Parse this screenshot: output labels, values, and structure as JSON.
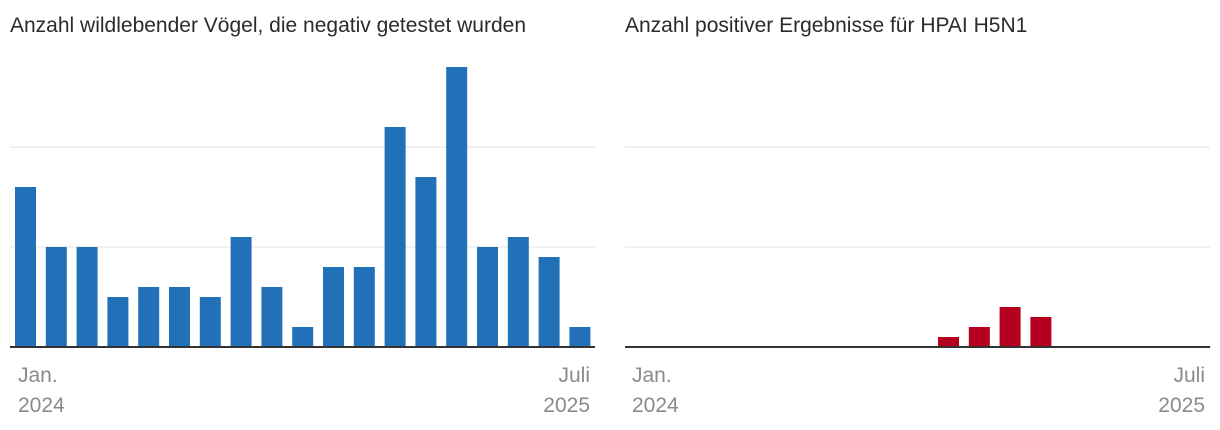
{
  "chart_data": [
    {
      "type": "bar",
      "title": "Anzahl wildlebender Vögel, die negativ getestet wurden",
      "color": "#2170b8",
      "ylim": [
        0,
        28
      ],
      "grid": true,
      "grid_values": [
        10,
        20
      ],
      "x_tick_labels": [
        {
          "line1": "Jan.",
          "line2": "2024",
          "anchor": "start"
        },
        {
          "line1": "Juli",
          "line2": "2025",
          "anchor": "end"
        }
      ],
      "categories": [
        "2024-01",
        "2024-02",
        "2024-03",
        "2024-04",
        "2024-05",
        "2024-06",
        "2024-07",
        "2024-08",
        "2024-09",
        "2024-10",
        "2024-11",
        "2024-12",
        "2025-01",
        "2025-02",
        "2025-03",
        "2025-04",
        "2025-05",
        "2025-06",
        "2025-07"
      ],
      "values": [
        16,
        10,
        10,
        5,
        6,
        6,
        5,
        11,
        6,
        2,
        8,
        8,
        22,
        17,
        28,
        10,
        11,
        9,
        2
      ]
    },
    {
      "type": "bar",
      "title": "Anzahl positiver Ergebnisse für HPAI H5N1",
      "color": "#b5001f",
      "ylim": [
        0,
        28
      ],
      "grid": true,
      "grid_values": [
        10,
        20
      ],
      "x_tick_labels": [
        {
          "line1": "Jan.",
          "line2": "2024",
          "anchor": "start"
        },
        {
          "line1": "Juli",
          "line2": "2025",
          "anchor": "end"
        }
      ],
      "categories": [
        "2024-01",
        "2024-02",
        "2024-03",
        "2024-04",
        "2024-05",
        "2024-06",
        "2024-07",
        "2024-08",
        "2024-09",
        "2024-10",
        "2024-11",
        "2024-12",
        "2025-01",
        "2025-02",
        "2025-03",
        "2025-04",
        "2025-05",
        "2025-06",
        "2025-07"
      ],
      "values": [
        0,
        0,
        0,
        0,
        0,
        0,
        0,
        0,
        0,
        0,
        1,
        2,
        4,
        3,
        0,
        0,
        0,
        0,
        0
      ]
    }
  ]
}
